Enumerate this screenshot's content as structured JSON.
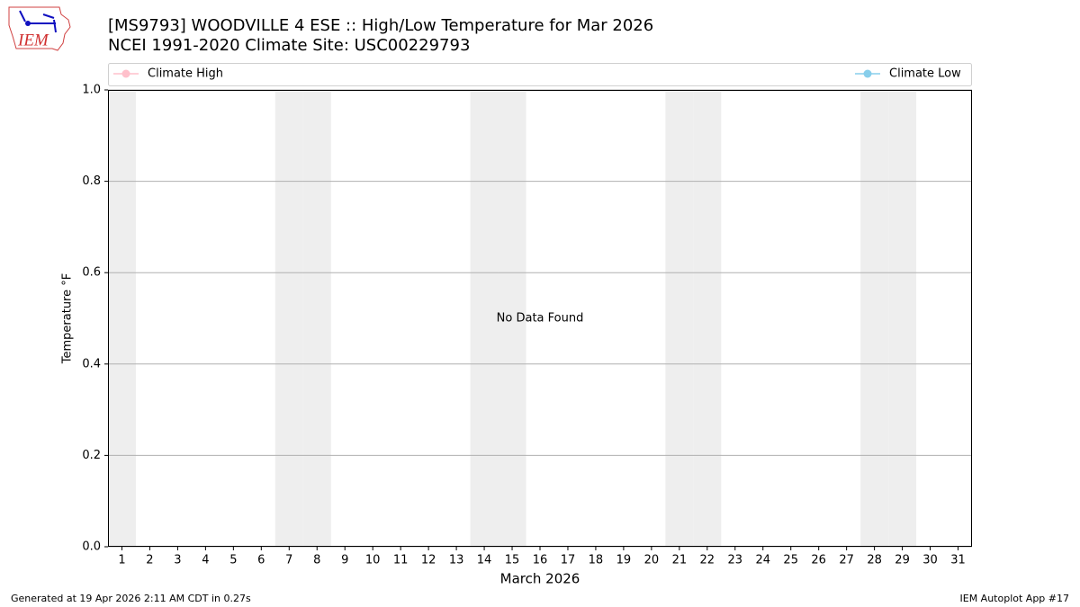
{
  "logo": "IEM",
  "footer_left": "Generated at 19 Apr 2026 2:11 AM CDT in 0.27s",
  "footer_right": "IEM Autoplot App #17",
  "chart_data": {
    "type": "line",
    "title": "[MS9793] WOODVILLE 4 ESE :: High/Low Temperature for Mar 2026",
    "subtitle": "NCEI 1991-2020 Climate Site: USC00229793",
    "x_label": "March 2026",
    "y_label": "Temperature °F",
    "annotation": "No Data Found",
    "x": [
      1,
      2,
      3,
      4,
      5,
      6,
      7,
      8,
      9,
      10,
      11,
      12,
      13,
      14,
      15,
      16,
      17,
      18,
      19,
      20,
      21,
      22,
      23,
      24,
      25,
      26,
      27,
      28,
      29,
      30,
      31
    ],
    "series": [
      {
        "name": "Climate High",
        "color": "#ffc0cb",
        "values": [
          null,
          null,
          null,
          null,
          null,
          null,
          null,
          null,
          null,
          null,
          null,
          null,
          null,
          null,
          null,
          null,
          null,
          null,
          null,
          null,
          null,
          null,
          null,
          null,
          null,
          null,
          null,
          null,
          null,
          null,
          null
        ]
      },
      {
        "name": "Climate Low",
        "color": "#87ceeb",
        "values": [
          null,
          null,
          null,
          null,
          null,
          null,
          null,
          null,
          null,
          null,
          null,
          null,
          null,
          null,
          null,
          null,
          null,
          null,
          null,
          null,
          null,
          null,
          null,
          null,
          null,
          null,
          null,
          null,
          null,
          null,
          null
        ]
      }
    ],
    "weekend_days": [
      1,
      7,
      8,
      14,
      15,
      21,
      22,
      28,
      29
    ],
    "xlim": [
      0.5,
      31.5
    ],
    "xticks": [
      1,
      2,
      3,
      4,
      5,
      6,
      7,
      8,
      9,
      10,
      11,
      12,
      13,
      14,
      15,
      16,
      17,
      18,
      19,
      20,
      21,
      22,
      23,
      24,
      25,
      26,
      27,
      28,
      29,
      30,
      31
    ],
    "ylim": [
      0,
      1
    ],
    "yticks": [
      {
        "value": 0,
        "label": "0.0"
      },
      {
        "value": 0.2,
        "label": "0.2"
      },
      {
        "value": 0.4,
        "label": "0.4"
      },
      {
        "value": 0.6,
        "label": "0.6"
      },
      {
        "value": 0.8,
        "label": "0.8"
      },
      {
        "value": 1,
        "label": "1.0"
      }
    ],
    "grid": "y",
    "legend": "top"
  }
}
